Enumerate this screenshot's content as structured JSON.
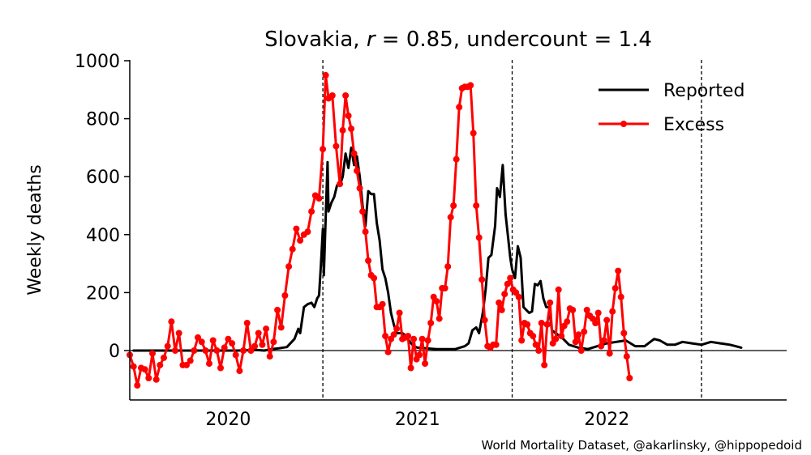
{
  "chart_data": {
    "type": "line",
    "title_country": "Slovakia,",
    "title_r_symbol": "r",
    "title_r_value": " = 0.85, undercount = 1.4",
    "ylabel": "Weekly deaths",
    "xlabel": "",
    "ylim": [
      -170,
      1000
    ],
    "yticks": [
      0,
      200,
      400,
      600,
      800,
      1000
    ],
    "xlim": [
      2019.48,
      2022.95
    ],
    "xticks": [
      {
        "label": "2020",
        "x": 2020.0
      },
      {
        "label": "2021",
        "x": 2021.0
      },
      {
        "label": "2022",
        "x": 2022.0
      }
    ],
    "vlines": [
      2020.5,
      2021.5,
      2022.5
    ],
    "hline": 0,
    "legend_position": "top-right",
    "grid": false,
    "credit": "World Mortality Dataset, @akarlinsky, @hippopedoid",
    "series": [
      {
        "name": "Reported",
        "color": "#000000",
        "marker": false,
        "points": [
          [
            2019.5,
            0
          ],
          [
            2020.05,
            0
          ],
          [
            2020.15,
            2
          ],
          [
            2020.19,
            0
          ],
          [
            2020.23,
            5
          ],
          [
            2020.27,
            8
          ],
          [
            2020.31,
            12
          ],
          [
            2020.35,
            40
          ],
          [
            2020.37,
            75
          ],
          [
            2020.38,
            60
          ],
          [
            2020.4,
            150
          ],
          [
            2020.42,
            160
          ],
          [
            2020.44,
            165
          ],
          [
            2020.455,
            150
          ],
          [
            2020.47,
            180
          ],
          [
            2020.48,
            190
          ],
          [
            2020.49,
            300
          ],
          [
            2020.5,
            420
          ],
          [
            2020.505,
            260
          ],
          [
            2020.515,
            460
          ],
          [
            2020.525,
            650
          ],
          [
            2020.53,
            480
          ],
          [
            2020.545,
            510
          ],
          [
            2020.56,
            530
          ],
          [
            2020.575,
            570
          ],
          [
            2020.59,
            570
          ],
          [
            2020.605,
            600
          ],
          [
            2020.62,
            680
          ],
          [
            2020.635,
            630
          ],
          [
            2020.65,
            700
          ],
          [
            2020.665,
            640
          ],
          [
            2020.68,
            670
          ],
          [
            2020.695,
            600
          ],
          [
            2020.71,
            500
          ],
          [
            2020.725,
            430
          ],
          [
            2020.74,
            550
          ],
          [
            2020.755,
            540
          ],
          [
            2020.77,
            540
          ],
          [
            2020.785,
            440
          ],
          [
            2020.8,
            380
          ],
          [
            2020.815,
            280
          ],
          [
            2020.83,
            250
          ],
          [
            2020.845,
            200
          ],
          [
            2020.86,
            130
          ],
          [
            2020.875,
            90
          ],
          [
            2020.89,
            60
          ],
          [
            2020.92,
            60
          ],
          [
            2020.94,
            50
          ],
          [
            2020.96,
            30
          ],
          [
            2020.98,
            15
          ],
          [
            2021.0,
            10
          ],
          [
            2021.1,
            5
          ],
          [
            2021.2,
            5
          ],
          [
            2021.25,
            15
          ],
          [
            2021.27,
            25
          ],
          [
            2021.29,
            70
          ],
          [
            2021.31,
            80
          ],
          [
            2021.325,
            60
          ],
          [
            2021.345,
            130
          ],
          [
            2021.36,
            210
          ],
          [
            2021.375,
            320
          ],
          [
            2021.39,
            330
          ],
          [
            2021.41,
            430
          ],
          [
            2021.42,
            560
          ],
          [
            2021.435,
            530
          ],
          [
            2021.45,
            640
          ],
          [
            2021.465,
            470
          ],
          [
            2021.48,
            380
          ],
          [
            2021.49,
            320
          ],
          [
            2021.5,
            280
          ],
          [
            2021.515,
            250
          ],
          [
            2021.53,
            360
          ],
          [
            2021.545,
            320
          ],
          [
            2021.56,
            150
          ],
          [
            2021.575,
            140
          ],
          [
            2021.59,
            130
          ],
          [
            2021.605,
            135
          ],
          [
            2021.62,
            230
          ],
          [
            2021.635,
            225
          ],
          [
            2021.65,
            240
          ],
          [
            2021.665,
            180
          ],
          [
            2021.68,
            150
          ],
          [
            2021.695,
            150
          ],
          [
            2021.71,
            70
          ],
          [
            2021.73,
            60
          ],
          [
            2021.75,
            50
          ],
          [
            2021.77,
            40
          ],
          [
            2021.8,
            20
          ],
          [
            2021.85,
            10
          ],
          [
            2021.9,
            5
          ],
          [
            2021.95,
            15
          ],
          [
            2022.0,
            25
          ],
          [
            2022.05,
            30
          ],
          [
            2022.1,
            35
          ],
          [
            2022.15,
            15
          ],
          [
            2022.2,
            15
          ],
          [
            2022.25,
            40
          ],
          [
            2022.28,
            35
          ],
          [
            2022.32,
            20
          ],
          [
            2022.36,
            20
          ],
          [
            2022.4,
            30
          ],
          [
            2022.45,
            25
          ],
          [
            2022.5,
            20
          ],
          [
            2022.55,
            30
          ],
          [
            2022.6,
            25
          ],
          [
            2022.65,
            20
          ],
          [
            2022.68,
            15
          ],
          [
            2022.71,
            10
          ]
        ]
      },
      {
        "name": "Excess",
        "color": "#ff0000",
        "marker": true,
        "points": [
          [
            2019.48,
            -15
          ],
          [
            2019.5,
            -55
          ],
          [
            2019.52,
            -120
          ],
          [
            2019.54,
            -60
          ],
          [
            2019.56,
            -65
          ],
          [
            2019.58,
            -95
          ],
          [
            2019.6,
            -10
          ],
          [
            2019.62,
            -100
          ],
          [
            2019.64,
            -50
          ],
          [
            2019.66,
            -25
          ],
          [
            2019.68,
            15
          ],
          [
            2019.7,
            100
          ],
          [
            2019.72,
            0
          ],
          [
            2019.74,
            60
          ],
          [
            2019.76,
            -50
          ],
          [
            2019.78,
            -50
          ],
          [
            2019.8,
            -35
          ],
          [
            2019.82,
            0
          ],
          [
            2019.84,
            45
          ],
          [
            2019.86,
            30
          ],
          [
            2019.88,
            0
          ],
          [
            2019.9,
            -45
          ],
          [
            2019.92,
            35
          ],
          [
            2019.94,
            0
          ],
          [
            2019.96,
            -60
          ],
          [
            2019.98,
            10
          ],
          [
            2020.0,
            40
          ],
          [
            2020.02,
            25
          ],
          [
            2020.04,
            -15
          ],
          [
            2020.06,
            -70
          ],
          [
            2020.08,
            0
          ],
          [
            2020.1,
            95
          ],
          [
            2020.12,
            0
          ],
          [
            2020.14,
            15
          ],
          [
            2020.16,
            60
          ],
          [
            2020.18,
            20
          ],
          [
            2020.2,
            75
          ],
          [
            2020.22,
            -20
          ],
          [
            2020.24,
            30
          ],
          [
            2020.26,
            140
          ],
          [
            2020.28,
            80
          ],
          [
            2020.3,
            190
          ],
          [
            2020.32,
            290
          ],
          [
            2020.34,
            350
          ],
          [
            2020.36,
            420
          ],
          [
            2020.38,
            380
          ],
          [
            2020.4,
            400
          ],
          [
            2020.42,
            410
          ],
          [
            2020.44,
            480
          ],
          [
            2020.46,
            535
          ],
          [
            2020.48,
            525
          ],
          [
            2020.5,
            695
          ],
          [
            2020.515,
            950
          ],
          [
            2020.53,
            870
          ],
          [
            2020.55,
            880
          ],
          [
            2020.57,
            705
          ],
          [
            2020.59,
            575
          ],
          [
            2020.605,
            760
          ],
          [
            2020.62,
            880
          ],
          [
            2020.635,
            810
          ],
          [
            2020.65,
            765
          ],
          [
            2020.665,
            680
          ],
          [
            2020.68,
            620
          ],
          [
            2020.695,
            560
          ],
          [
            2020.71,
            480
          ],
          [
            2020.725,
            410
          ],
          [
            2020.74,
            310
          ],
          [
            2020.755,
            260
          ],
          [
            2020.77,
            250
          ],
          [
            2020.785,
            150
          ],
          [
            2020.8,
            150
          ],
          [
            2020.815,
            160
          ],
          [
            2020.83,
            50
          ],
          [
            2020.845,
            -5
          ],
          [
            2020.86,
            40
          ],
          [
            2020.875,
            55
          ],
          [
            2020.89,
            75
          ],
          [
            2020.905,
            130
          ],
          [
            2020.92,
            40
          ],
          [
            2020.935,
            45
          ],
          [
            2020.95,
            50
          ],
          [
            2020.965,
            -60
          ],
          [
            2020.98,
            40
          ],
          [
            2020.995,
            -30
          ],
          [
            2021.01,
            -15
          ],
          [
            2021.025,
            40
          ],
          [
            2021.04,
            -45
          ],
          [
            2021.055,
            35
          ],
          [
            2021.07,
            95
          ],
          [
            2021.085,
            185
          ],
          [
            2021.1,
            170
          ],
          [
            2021.115,
            110
          ],
          [
            2021.13,
            215
          ],
          [
            2021.145,
            215
          ],
          [
            2021.16,
            290
          ],
          [
            2021.175,
            460
          ],
          [
            2021.19,
            500
          ],
          [
            2021.205,
            660
          ],
          [
            2021.22,
            840
          ],
          [
            2021.235,
            905
          ],
          [
            2021.25,
            910
          ],
          [
            2021.265,
            910
          ],
          [
            2021.28,
            915
          ],
          [
            2021.295,
            750
          ],
          [
            2021.31,
            500
          ],
          [
            2021.325,
            390
          ],
          [
            2021.34,
            245
          ],
          [
            2021.355,
            105
          ],
          [
            2021.37,
            15
          ],
          [
            2021.385,
            10
          ],
          [
            2021.4,
            20
          ],
          [
            2021.415,
            20
          ],
          [
            2021.43,
            165
          ],
          [
            2021.445,
            140
          ],
          [
            2021.46,
            195
          ],
          [
            2021.475,
            230
          ],
          [
            2021.49,
            250
          ],
          [
            2021.505,
            210
          ],
          [
            2021.52,
            200
          ],
          [
            2021.535,
            185
          ],
          [
            2021.55,
            35
          ],
          [
            2021.565,
            95
          ],
          [
            2021.58,
            90
          ],
          [
            2021.595,
            60
          ],
          [
            2021.61,
            50
          ],
          [
            2021.625,
            20
          ],
          [
            2021.64,
            0
          ],
          [
            2021.655,
            95
          ],
          [
            2021.67,
            -50
          ],
          [
            2021.685,
            90
          ],
          [
            2021.7,
            165
          ],
          [
            2021.715,
            25
          ],
          [
            2021.73,
            40
          ],
          [
            2021.745,
            210
          ],
          [
            2021.76,
            50
          ],
          [
            2021.775,
            85
          ],
          [
            2021.79,
            100
          ],
          [
            2021.805,
            145
          ],
          [
            2021.82,
            140
          ],
          [
            2021.835,
            30
          ],
          [
            2021.85,
            55
          ],
          [
            2021.865,
            0
          ],
          [
            2021.88,
            65
          ],
          [
            2021.895,
            140
          ],
          [
            2021.91,
            120
          ],
          [
            2021.925,
            110
          ],
          [
            2021.94,
            95
          ],
          [
            2021.955,
            130
          ],
          [
            2021.97,
            15
          ],
          [
            2021.985,
            35
          ],
          [
            2022.0,
            105
          ],
          [
            2022.015,
            -10
          ],
          [
            2022.03,
            135
          ],
          [
            2022.045,
            215
          ],
          [
            2022.06,
            275
          ],
          [
            2022.075,
            185
          ],
          [
            2022.09,
            60
          ],
          [
            2022.105,
            -20
          ],
          [
            2022.12,
            -95
          ]
        ]
      }
    ]
  }
}
